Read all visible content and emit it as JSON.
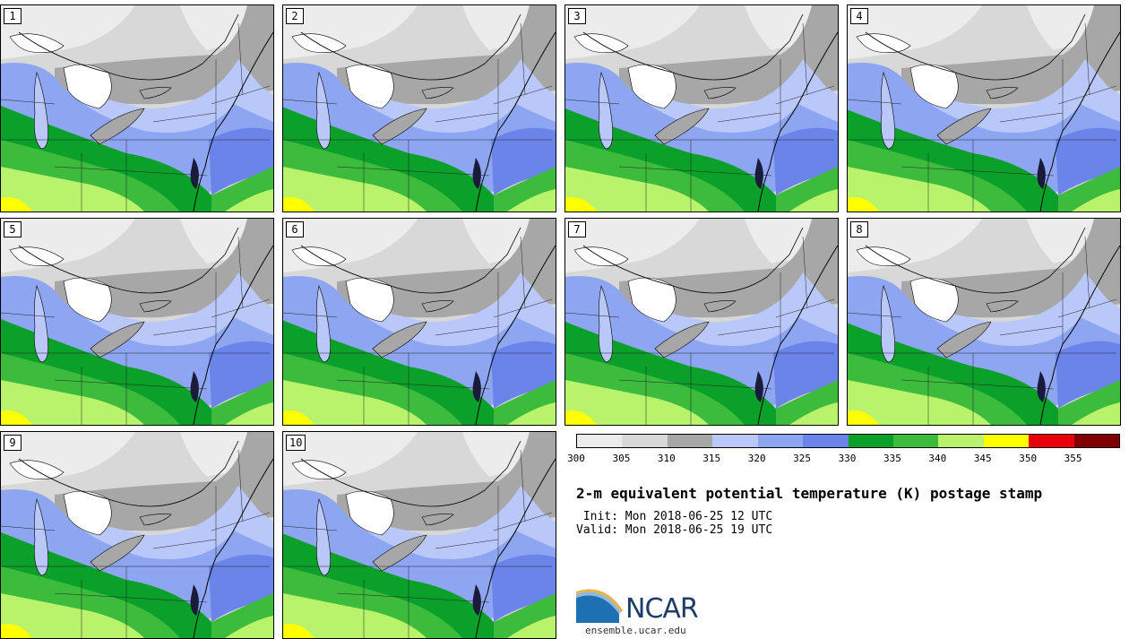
{
  "panels": [
    "1",
    "2",
    "3",
    "4",
    "5",
    "6",
    "7",
    "8",
    "9",
    "10"
  ],
  "colorbar": {
    "ticks": [
      "300",
      "305",
      "310",
      "315",
      "320",
      "325",
      "330",
      "335",
      "340",
      "345",
      "350",
      "355"
    ],
    "colors": [
      "#ececec",
      "#d8d8d8",
      "#a7a7a7",
      "#b9c8f8",
      "#8ea6f2",
      "#6b84ea",
      "#0aa02a",
      "#3dbb3d",
      "#b9f36c",
      "#ffff00",
      "#e8000b",
      "#800000"
    ]
  },
  "title": "2-m equivalent potential temperature (K) postage stamp",
  "init": " Init: Mon 2018-06-25 12 UTC",
  "valid": "Valid: Mon 2018-06-25 19 UTC",
  "logo": {
    "text": "NCAR",
    "url": "ensemble.ucar.edu",
    "colors": {
      "arc_blue": "#1f6fb3",
      "arc_light": "#8fb8dc",
      "arc_gold": "#e8b24a",
      "text": "#1d3d6b"
    }
  }
}
